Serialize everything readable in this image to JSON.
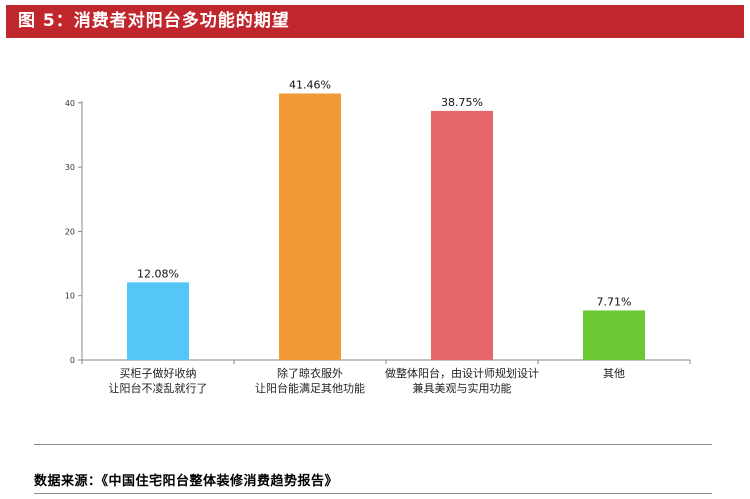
{
  "figure": {
    "title": "图 5：消费者对阳台多功能的期望"
  },
  "chart_data": {
    "type": "bar",
    "categories": [
      [
        "买柜子做好收纳",
        "让阳台不凌乱就行了"
      ],
      [
        "除了晾衣服外",
        "让阳台能满足其他功能"
      ],
      [
        "做整体阳台，由设计师规划设计",
        "兼具美观与实用功能"
      ],
      [
        "其他"
      ]
    ],
    "values": [
      12.08,
      41.46,
      38.75,
      7.71
    ],
    "value_labels": [
      "12.08%",
      "41.46%",
      "38.75%",
      "7.71%"
    ],
    "colors": [
      "#55c7f7",
      "#f29a36",
      "#e5676a",
      "#6cc835"
    ],
    "ylim": [
      0,
      42
    ],
    "yticks": [
      0,
      10,
      20,
      30,
      40
    ],
    "title": "",
    "xlabel": "",
    "ylabel": "",
    "grid": false,
    "legend": "none"
  },
  "footer": {
    "source": "数据来源：《中国住宅阳台整体装修消费趋势报告》"
  }
}
